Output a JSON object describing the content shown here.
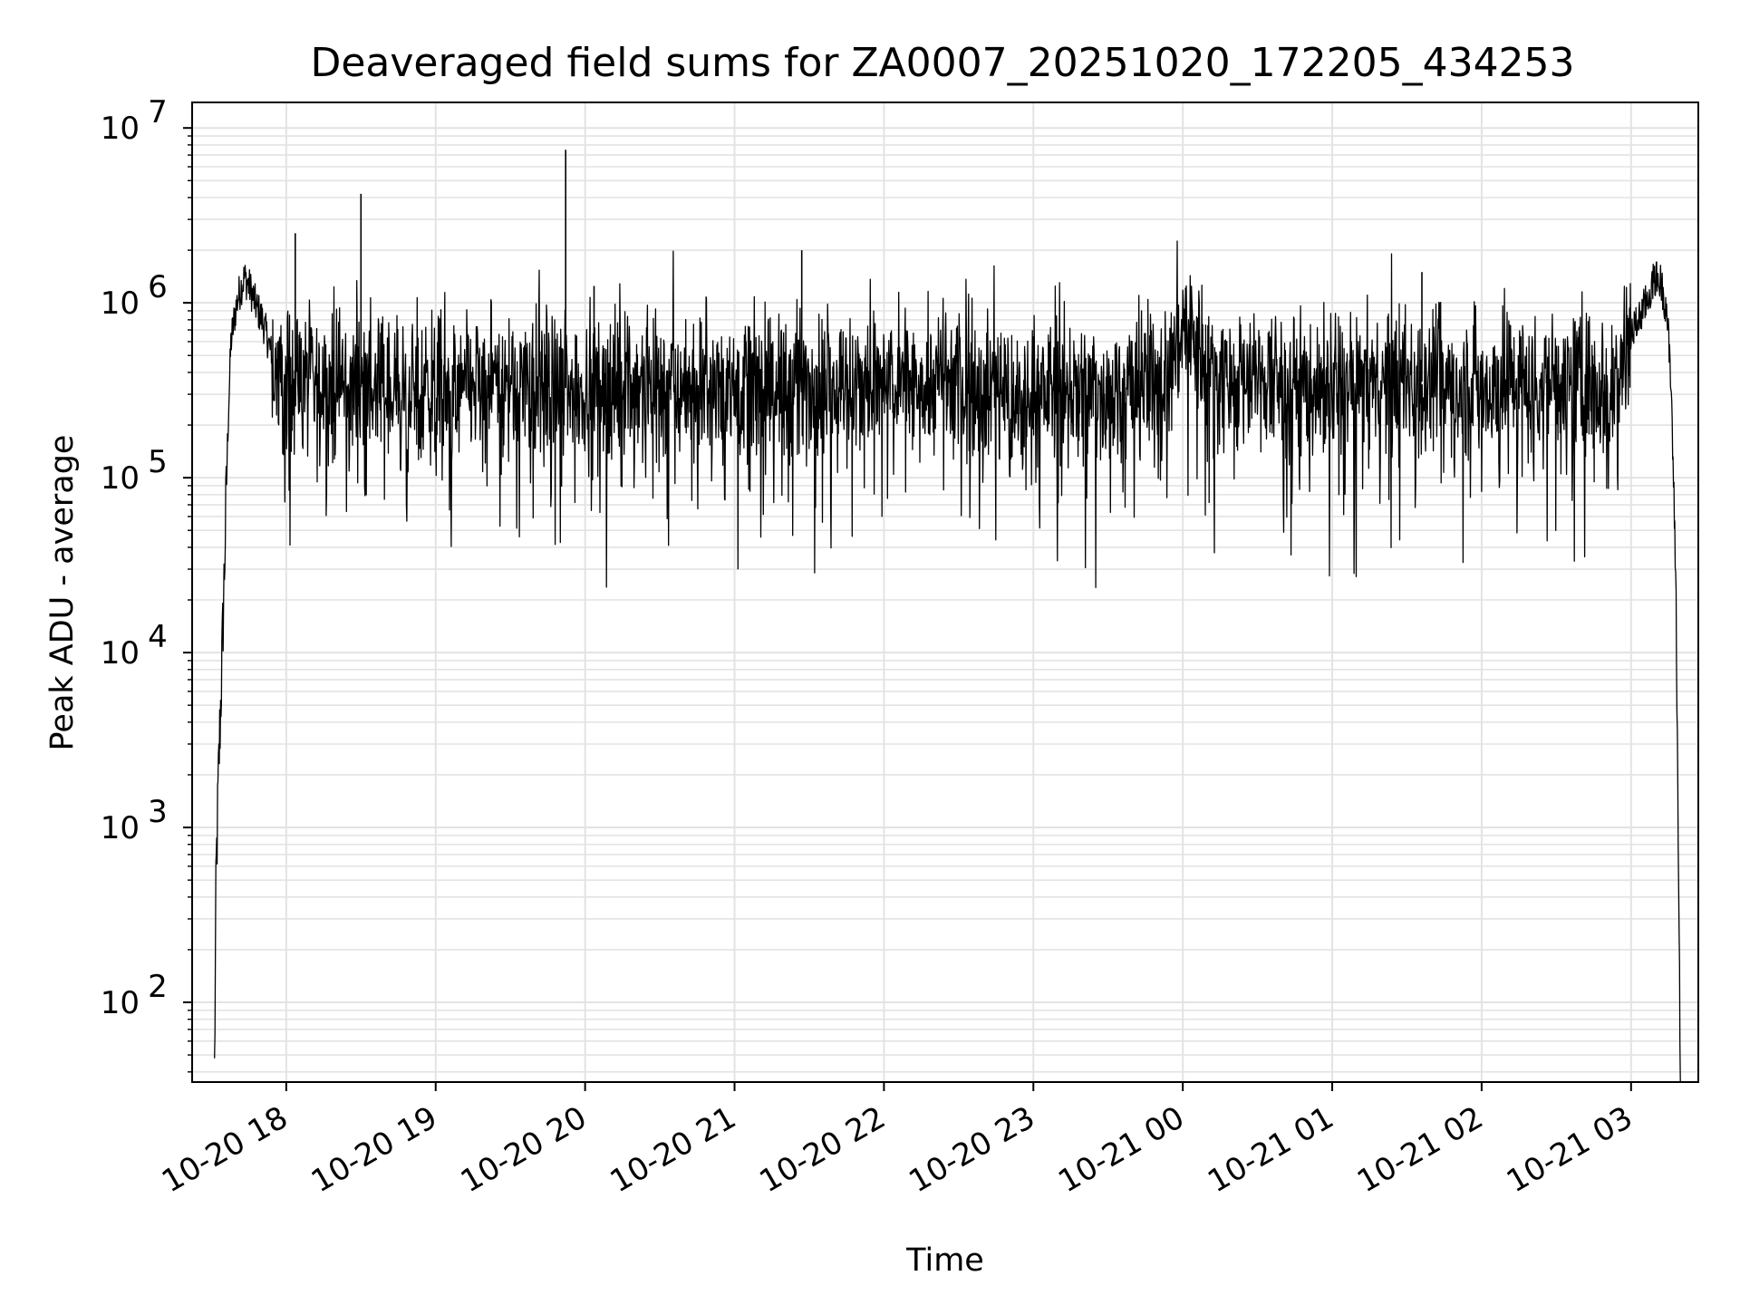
{
  "chart_data": {
    "type": "line",
    "title": "Deaveraged field sums for ZA0007_20251020_172205_434253",
    "xlabel": "Time",
    "ylabel": "Peak ADU - average",
    "yscale": "log",
    "xlim": [
      17.37,
      27.45
    ],
    "ylim": [
      35,
      14000000
    ],
    "grid": true,
    "line_color": "#000000",
    "x_tick_values": [
      18,
      19,
      20,
      21,
      22,
      23,
      24,
      25,
      26,
      27
    ],
    "x_tick_labels": [
      "10-20 18",
      "10-20 19",
      "10-20 20",
      "10-20 21",
      "10-20 22",
      "10-20 23",
      "10-21 00",
      "10-21 01",
      "10-21 02",
      "10-21 03"
    ],
    "y_ticks": [
      {
        "value": 100,
        "base": "10",
        "exp": "2"
      },
      {
        "value": 1000,
        "base": "10",
        "exp": "3"
      },
      {
        "value": 10000,
        "base": "10",
        "exp": "4"
      },
      {
        "value": 100000,
        "base": "10",
        "exp": "5"
      },
      {
        "value": 1000000,
        "base": "10",
        "exp": "6"
      },
      {
        "value": 10000000,
        "base": "10",
        "exp": "7"
      }
    ],
    "series": [
      {
        "name": "Peak ADU - average",
        "note": "x in hours since 10-20 00:00; dense noisy series summarized by representative points",
        "x": [
          17.52,
          17.53,
          17.55,
          17.57,
          17.59,
          17.61,
          17.63,
          17.66,
          17.68,
          17.72,
          17.76,
          17.8,
          17.84,
          17.88,
          17.93,
          18.0,
          18.06,
          18.1,
          18.2,
          18.3,
          18.45,
          18.5,
          18.55,
          18.7,
          18.9,
          19.08,
          19.1,
          19.3,
          19.6,
          19.85,
          19.87,
          19.9,
          20.06,
          20.2,
          20.5,
          20.8,
          21.0,
          21.2,
          21.42,
          21.45,
          21.6,
          21.8,
          22.0,
          22.3,
          22.6,
          22.83,
          22.85,
          23.0,
          23.3,
          23.6,
          23.9,
          24.0,
          24.2,
          24.5,
          24.8,
          25.0,
          25.2,
          25.45,
          25.6,
          25.7,
          25.9,
          26.1,
          26.4,
          26.7,
          26.83,
          26.9,
          26.98,
          27.05,
          27.12,
          27.16,
          27.2,
          27.24,
          27.27,
          27.3,
          27.33
        ],
        "y": [
          40,
          500,
          2500,
          9000,
          40000,
          200000,
          600000,
          900000,
          1100000,
          1400000,
          1200000,
          950000,
          800000,
          600000,
          400000,
          350000,
          2500000,
          380000,
          300000,
          350000,
          320000,
          4200000,
          340000,
          300000,
          310000,
          330000,
          300000,
          340000,
          360000,
          330000,
          7500000,
          320000,
          1250000,
          350000,
          340000,
          330000,
          360000,
          320000,
          340000,
          2000000,
          350000,
          330000,
          360000,
          350000,
          340000,
          320000,
          200000,
          330000,
          300000,
          320000,
          360000,
          800000,
          380000,
          360000,
          330000,
          340000,
          330000,
          360000,
          1500000,
          350000,
          340000,
          330000,
          360000,
          340000,
          350000,
          380000,
          600000,
          800000,
          1100000,
          1400000,
          1300000,
          900000,
          300000,
          25000,
          40
        ]
      }
    ]
  }
}
